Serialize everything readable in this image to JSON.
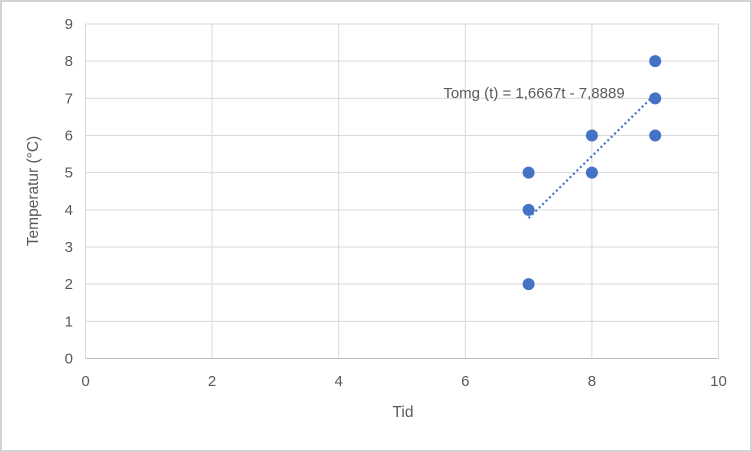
{
  "chart_data": {
    "type": "scatter",
    "title": "",
    "xlabel": "Tid",
    "ylabel": "Temperatur (°C)",
    "xlim": [
      0,
      10
    ],
    "ylim": [
      0,
      9
    ],
    "x_ticks": [
      0,
      2,
      4,
      6,
      8,
      10
    ],
    "y_ticks": [
      0,
      1,
      2,
      3,
      4,
      5,
      6,
      7,
      8,
      9
    ],
    "grid": true,
    "legend": "none",
    "points": [
      {
        "x": 7,
        "y": 2
      },
      {
        "x": 7,
        "y": 4
      },
      {
        "x": 7,
        "y": 5
      },
      {
        "x": 8,
        "y": 5
      },
      {
        "x": 8,
        "y": 6
      },
      {
        "x": 9,
        "y": 6
      },
      {
        "x": 9,
        "y": 7
      },
      {
        "x": 9,
        "y": 8
      }
    ],
    "trendline": {
      "label": "Tomg (t) = 1,6667t - 7,8889",
      "slope": 1.6667,
      "intercept": -7.8889,
      "x_start": 7,
      "x_end": 9,
      "style": "dotted"
    },
    "colors": {
      "marker": "#4472C4",
      "trendline": "#4472C4",
      "gridline": "#d9d9d9",
      "axis_line": "#bfbfbf",
      "text": "#595959",
      "frame_border": "#d2d2d2",
      "background": "#ffffff"
    }
  }
}
